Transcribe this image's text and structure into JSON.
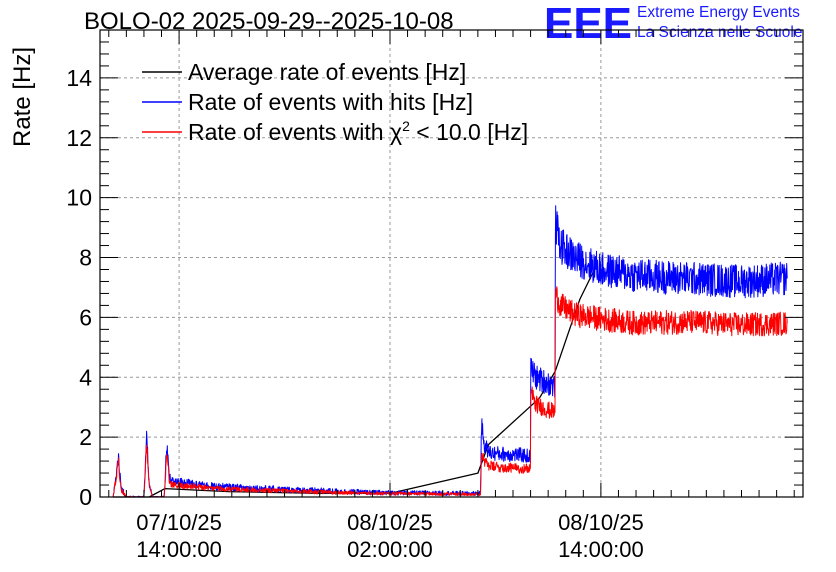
{
  "title": "BOLO-02 2025-09-29--2025-10-08",
  "logo": {
    "mark": "EEE",
    "line1": "Extreme Energy Events",
    "line2": "La Scienza nelle Scuole",
    "color": "#1a1aff"
  },
  "chart_data": {
    "type": "line",
    "ylabel": "Rate [Hz]",
    "xlabel": "",
    "ylim": [
      0,
      15.6
    ],
    "y_ticks": [
      0,
      2,
      4,
      6,
      8,
      10,
      12,
      14
    ],
    "x_unit": "hours since 07/10/25 00:00:00",
    "xlim": [
      9.5,
      49.5
    ],
    "x_ticks": [
      {
        "x": 14,
        "date": "07/10/25",
        "time": "14:00:00"
      },
      {
        "x": 26,
        "date": "08/10/25",
        "time": "02:00:00"
      },
      {
        "x": 38,
        "date": "08/10/25",
        "time": "14:00:00"
      }
    ],
    "grid": true,
    "legend_position": "top-left",
    "series": [
      {
        "name": "Average rate of events [Hz]",
        "legend_label": {
          "pre": "Average rate of events [Hz]"
        },
        "color": "#000000",
        "noise": 0,
        "x": [
          10.25,
          10.8,
          12.3,
          13.2,
          16.8,
          22.0,
          26.0,
          31.0,
          31.6,
          34.5,
          35.4,
          36.8,
          37.8
        ],
        "y": [
          0.0,
          0.0,
          0.0,
          0.28,
          0.18,
          0.12,
          0.12,
          0.8,
          1.75,
          3.3,
          4.2,
          6.6,
          7.8
        ]
      },
      {
        "name": "Rate of events with hits [Hz]",
        "legend_label": {
          "pre": "Rate of events with hits [Hz]"
        },
        "color": "#0000ff",
        "noise": 0.35,
        "x": [
          10.25,
          10.55,
          10.7,
          11.0,
          12.0,
          12.15,
          12.3,
          12.5,
          13.15,
          13.3,
          13.45,
          13.6,
          14.0,
          16.0,
          20.0,
          25.0,
          30.0,
          31.15,
          31.2,
          31.35,
          31.6,
          32.0,
          33.5,
          34.0,
          34.01,
          34.3,
          35.0,
          35.4,
          35.41,
          35.7,
          36.5,
          38.0,
          40.0,
          43.0,
          46.0,
          48.6
        ],
        "y": [
          0.0,
          1.3,
          0.3,
          0.0,
          0.0,
          2.1,
          0.4,
          0.0,
          0.0,
          1.75,
          0.65,
          0.55,
          0.5,
          0.35,
          0.25,
          0.15,
          0.12,
          0.12,
          2.5,
          1.8,
          1.5,
          1.45,
          1.4,
          1.35,
          4.3,
          4.0,
          3.8,
          3.7,
          9.2,
          8.4,
          8.0,
          7.6,
          7.4,
          7.3,
          7.2,
          7.3
        ]
      },
      {
        "name": "Rate of events with χ² < 10.0 [Hz]",
        "legend_label": {
          "pre": "Rate of events with ",
          "chi": "χ",
          "sup": "2",
          "post": " < 10.0 [Hz]"
        },
        "color": "#ff0000",
        "noise": 0.28,
        "x": [
          10.25,
          10.55,
          10.7,
          11.0,
          12.0,
          12.15,
          12.3,
          12.5,
          13.15,
          13.3,
          13.45,
          13.6,
          14.0,
          16.0,
          20.0,
          25.0,
          30.0,
          31.15,
          31.2,
          31.35,
          31.6,
          32.0,
          33.5,
          34.0,
          34.01,
          34.3,
          35.0,
          35.4,
          35.41,
          35.7,
          36.5,
          38.0,
          40.0,
          43.0,
          46.0,
          48.6
        ],
        "y": [
          0.0,
          1.15,
          0.25,
          0.0,
          0.0,
          1.85,
          0.35,
          0.0,
          0.0,
          1.55,
          0.5,
          0.42,
          0.4,
          0.28,
          0.2,
          0.12,
          0.1,
          0.1,
          1.5,
          1.2,
          1.05,
          1.0,
          0.95,
          0.95,
          3.5,
          3.1,
          2.9,
          2.85,
          6.8,
          6.4,
          6.1,
          5.95,
          5.8,
          5.85,
          5.75,
          5.8
        ]
      }
    ]
  }
}
